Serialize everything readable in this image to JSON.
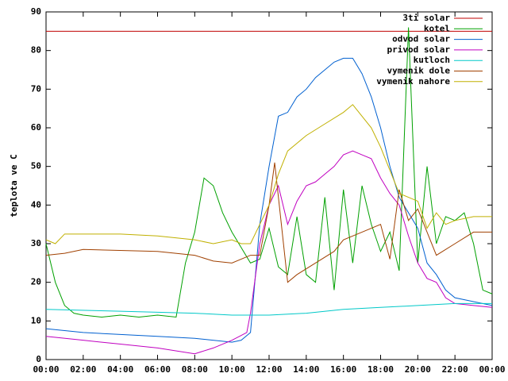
{
  "chart_data": {
    "type": "line",
    "ylabel": "teplota ve C",
    "xlim": [
      0,
      24
    ],
    "ylim": [
      0,
      90
    ],
    "yticks": [
      0,
      10,
      20,
      30,
      40,
      50,
      60,
      70,
      80,
      90
    ],
    "xticks": [
      {
        "value": 0,
        "label": "00:00"
      },
      {
        "value": 2,
        "label": "02:00"
      },
      {
        "value": 4,
        "label": "04:00"
      },
      {
        "value": 6,
        "label": "06:00"
      },
      {
        "value": 8,
        "label": "08:00"
      },
      {
        "value": 10,
        "label": "10:00"
      },
      {
        "value": 12,
        "label": "12:00"
      },
      {
        "value": 14,
        "label": "14:00"
      },
      {
        "value": 16,
        "label": "16:00"
      },
      {
        "value": 18,
        "label": "18:00"
      },
      {
        "value": 20,
        "label": "20:00"
      },
      {
        "value": 22,
        "label": "22:00"
      },
      {
        "value": 24,
        "label": "00:00"
      }
    ],
    "legend": "top-right",
    "series": [
      {
        "name": "3ti solar",
        "color": "#c00000",
        "x": [
          0,
          24
        ],
        "values": [
          85,
          85
        ]
      },
      {
        "name": "kotel",
        "color": "#00a000",
        "x": [
          0,
          0.5,
          1,
          1.5,
          2,
          3,
          4,
          5,
          6,
          7,
          7.5,
          8,
          8.5,
          9,
          9.5,
          10,
          10.5,
          11,
          11.5,
          12,
          12.5,
          13,
          13.5,
          14,
          14.5,
          15,
          15.5,
          16,
          16.5,
          17,
          17.5,
          18,
          18.5,
          19,
          19.5,
          20,
          20.5,
          21,
          21.5,
          22,
          22.5,
          23,
          23.5,
          24
        ],
        "values": [
          30,
          20,
          14,
          12,
          11.5,
          11,
          11.5,
          11,
          11.5,
          11,
          25,
          33,
          47,
          45,
          38,
          33,
          29,
          25,
          26,
          34,
          24,
          22,
          37,
          22,
          20,
          42,
          18,
          44,
          25,
          45,
          35,
          28,
          33,
          23,
          86,
          25,
          50,
          30,
          37,
          36,
          38,
          30,
          18,
          17
        ]
      },
      {
        "name": "odvod solar",
        "color": "#0060d0",
        "x": [
          0,
          2,
          4,
          6,
          8,
          10,
          10.5,
          11,
          11.5,
          12,
          12.5,
          13,
          13.5,
          14,
          14.5,
          15,
          15.5,
          16,
          16.5,
          17,
          17.5,
          18,
          18.5,
          19,
          19.5,
          20,
          20.5,
          21,
          21.5,
          22,
          23,
          24
        ],
        "values": [
          8,
          7,
          6.5,
          6,
          5.5,
          4.5,
          5,
          7,
          35,
          50,
          63,
          64,
          68,
          70,
          73,
          75,
          77,
          78,
          78,
          74,
          68,
          60,
          50,
          42,
          38,
          34,
          25,
          22,
          18,
          16,
          15,
          14
        ]
      },
      {
        "name": "privod solar",
        "color": "#c000c0",
        "x": [
          0,
          2,
          4,
          6,
          8,
          9,
          10,
          10.8,
          11,
          11.5,
          12,
          12.5,
          13,
          13.5,
          14,
          14.5,
          15,
          15.5,
          16,
          16.5,
          17,
          17.5,
          18,
          18.5,
          19,
          19.5,
          20,
          20.5,
          21,
          21.5,
          22,
          23,
          24
        ],
        "values": [
          6,
          5,
          4,
          3,
          1.5,
          3,
          5,
          7,
          12,
          30,
          40,
          45,
          35,
          41,
          45,
          46,
          48,
          50,
          53,
          54,
          53,
          52,
          47,
          43,
          40,
          32,
          25,
          21,
          20,
          16,
          14.5,
          14,
          13.5
        ]
      },
      {
        "name": "kutloch",
        "color": "#00c8c8",
        "x": [
          0,
          4,
          8,
          10,
          12,
          14,
          16,
          18,
          20,
          22,
          24
        ],
        "values": [
          13,
          12.5,
          12,
          11.5,
          11.5,
          12,
          13,
          13.5,
          14,
          14.5,
          14.5
        ]
      },
      {
        "name": "vymenik dole",
        "color": "#a04000",
        "x": [
          0,
          1,
          2,
          6,
          8,
          9,
          10,
          11,
          11.5,
          12,
          12.3,
          13,
          13.5,
          14.5,
          15.5,
          16,
          17,
          18,
          18.5,
          19,
          19.5,
          20,
          20.5,
          21,
          22,
          23,
          24
        ],
        "values": [
          27,
          27.5,
          28.5,
          28,
          27,
          25.5,
          25,
          27,
          27,
          40,
          51,
          20,
          22,
          25,
          28,
          31,
          33,
          35,
          26,
          44,
          36,
          39,
          33,
          27,
          30,
          33,
          33
        ]
      },
      {
        "name": "vymenik nahore",
        "color": "#c0b000",
        "x": [
          0,
          0.5,
          1,
          4,
          6,
          8,
          9,
          10,
          10.5,
          11,
          11.5,
          12,
          12.5,
          13,
          13.5,
          14,
          15,
          16,
          16.5,
          17,
          17.5,
          18,
          18.5,
          19,
          19.5,
          20,
          20.5,
          21,
          21.5,
          22,
          23,
          24
        ],
        "values": [
          31,
          30,
          32.5,
          32.5,
          32,
          31,
          30,
          31,
          30,
          30,
          35,
          40,
          48,
          54,
          56,
          58,
          61,
          64,
          66,
          63,
          60,
          55,
          49,
          43,
          42,
          41,
          34,
          38,
          35,
          36,
          37,
          37
        ]
      }
    ]
  }
}
